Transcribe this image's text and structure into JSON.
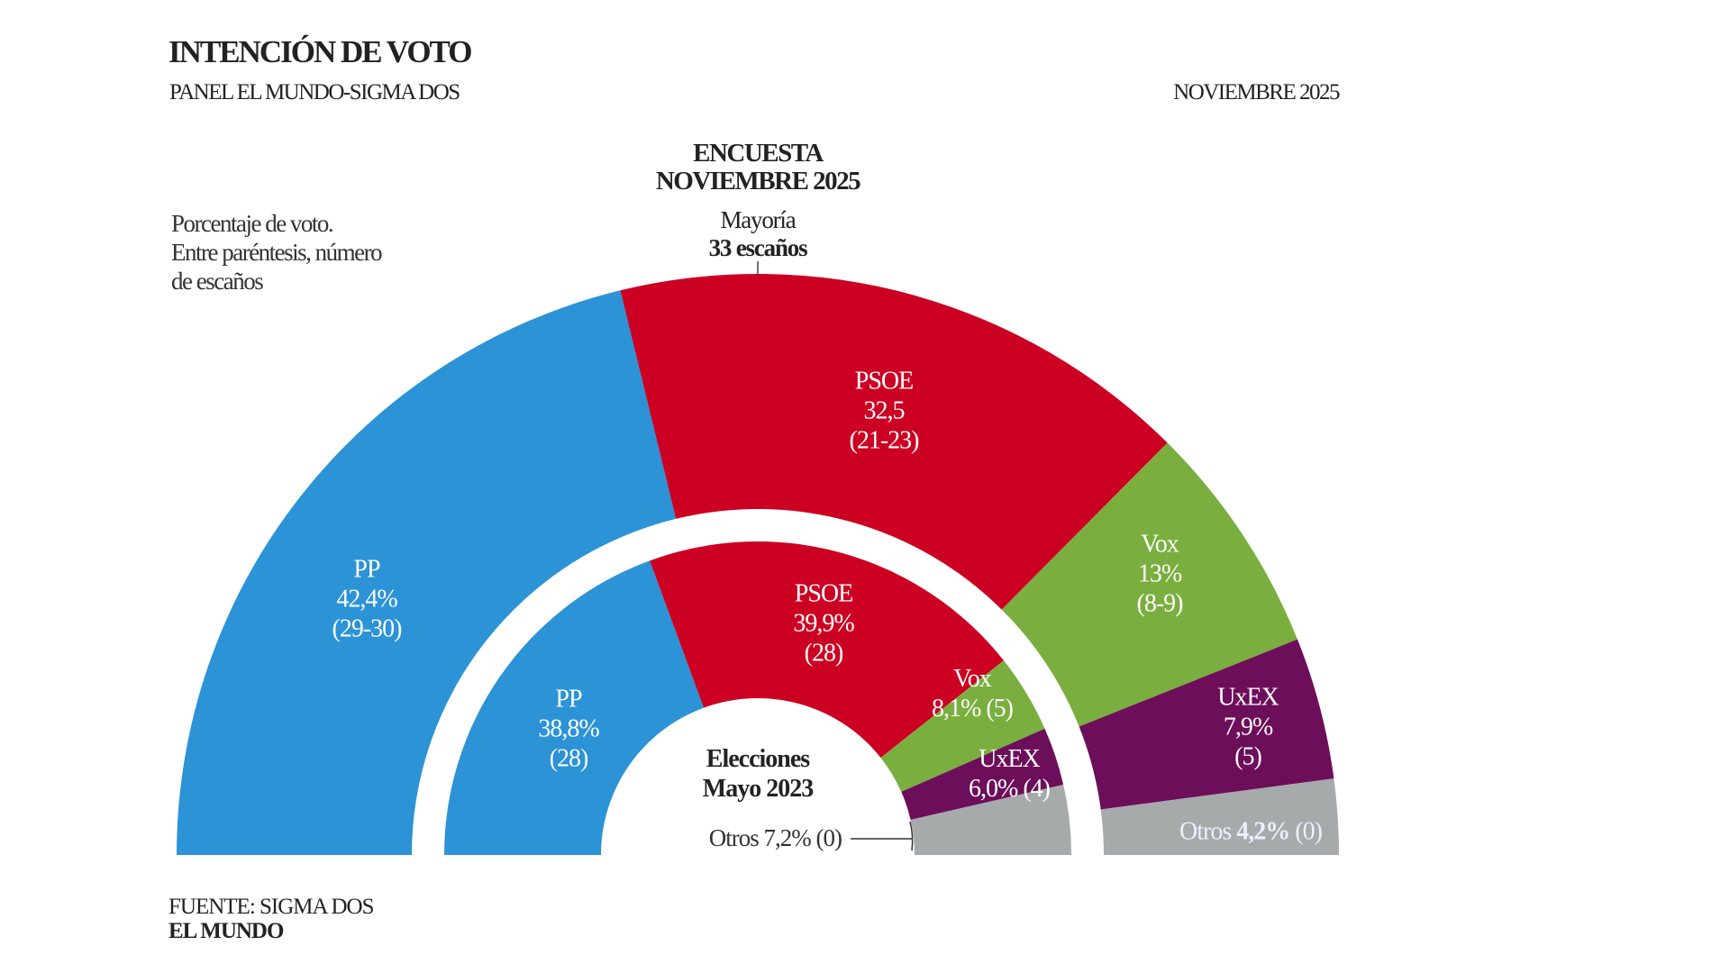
{
  "header": {
    "title": "INTENCIÓN DE VOTO",
    "subtitle": "PANEL EL MUNDO-SIGMA DOS",
    "date": "NOVIEMBRE 2025"
  },
  "note": [
    "Porcentaje de voto.",
    "Entre paréntesis, número",
    "de escaños"
  ],
  "footer": {
    "source": "FUENTE: SIGMA DOS",
    "brand": "EL MUNDO"
  },
  "chart_data": {
    "type": "pie",
    "subtype": "half-donut (parliament), two concentric rings",
    "majority": {
      "label": "Mayoría",
      "value": "33 escaños"
    },
    "rings": [
      {
        "name": "ENCUESTA NOVIEMBRE 2025",
        "title_lines": [
          "ENCUESTA",
          "NOVIEMBRE 2025"
        ],
        "position": "outer",
        "slices": [
          {
            "party": "PP",
            "value": 42.4,
            "label": "42,4%",
            "seats": "(29-30)",
            "color": "#2b93d6"
          },
          {
            "party": "PSOE",
            "value": 32.5,
            "label": "32,5",
            "seats": "(21-23)",
            "color": "#cc0022"
          },
          {
            "party": "Vox",
            "value": 13,
            "label": "13%",
            "seats": "(8-9)",
            "color": "#7aaf3f"
          },
          {
            "party": "UxEX",
            "value": 7.9,
            "label": "7,9%",
            "seats": "(5)",
            "color": "#6d0e5a"
          },
          {
            "party": "Otros",
            "value": 4.2,
            "label": "4,2%",
            "seats": "(0)",
            "color": "#a7aaab"
          }
        ]
      },
      {
        "name": "Elecciones Mayo 2023",
        "title_lines": [
          "Elecciones",
          "Mayo 2023"
        ],
        "position": "inner",
        "slices": [
          {
            "party": "PP",
            "value": 38.8,
            "label": "38,8%",
            "seats": "(28)",
            "color": "#2b93d6"
          },
          {
            "party": "PSOE",
            "value": 39.9,
            "label": "39,9%",
            "seats": "(28)",
            "color": "#cc0022"
          },
          {
            "party": "Vox",
            "value": 8.1,
            "label": "8,1%",
            "seats": "(5)",
            "color": "#7aaf3f"
          },
          {
            "party": "UxEX",
            "value": 6.0,
            "label": "6,0%",
            "seats": "(4)",
            "color": "#6d0e5a"
          },
          {
            "party": "Otros",
            "value": 7.2,
            "label": "7,2%",
            "seats": "(0)",
            "color": "#a7aaab"
          }
        ]
      }
    ]
  }
}
